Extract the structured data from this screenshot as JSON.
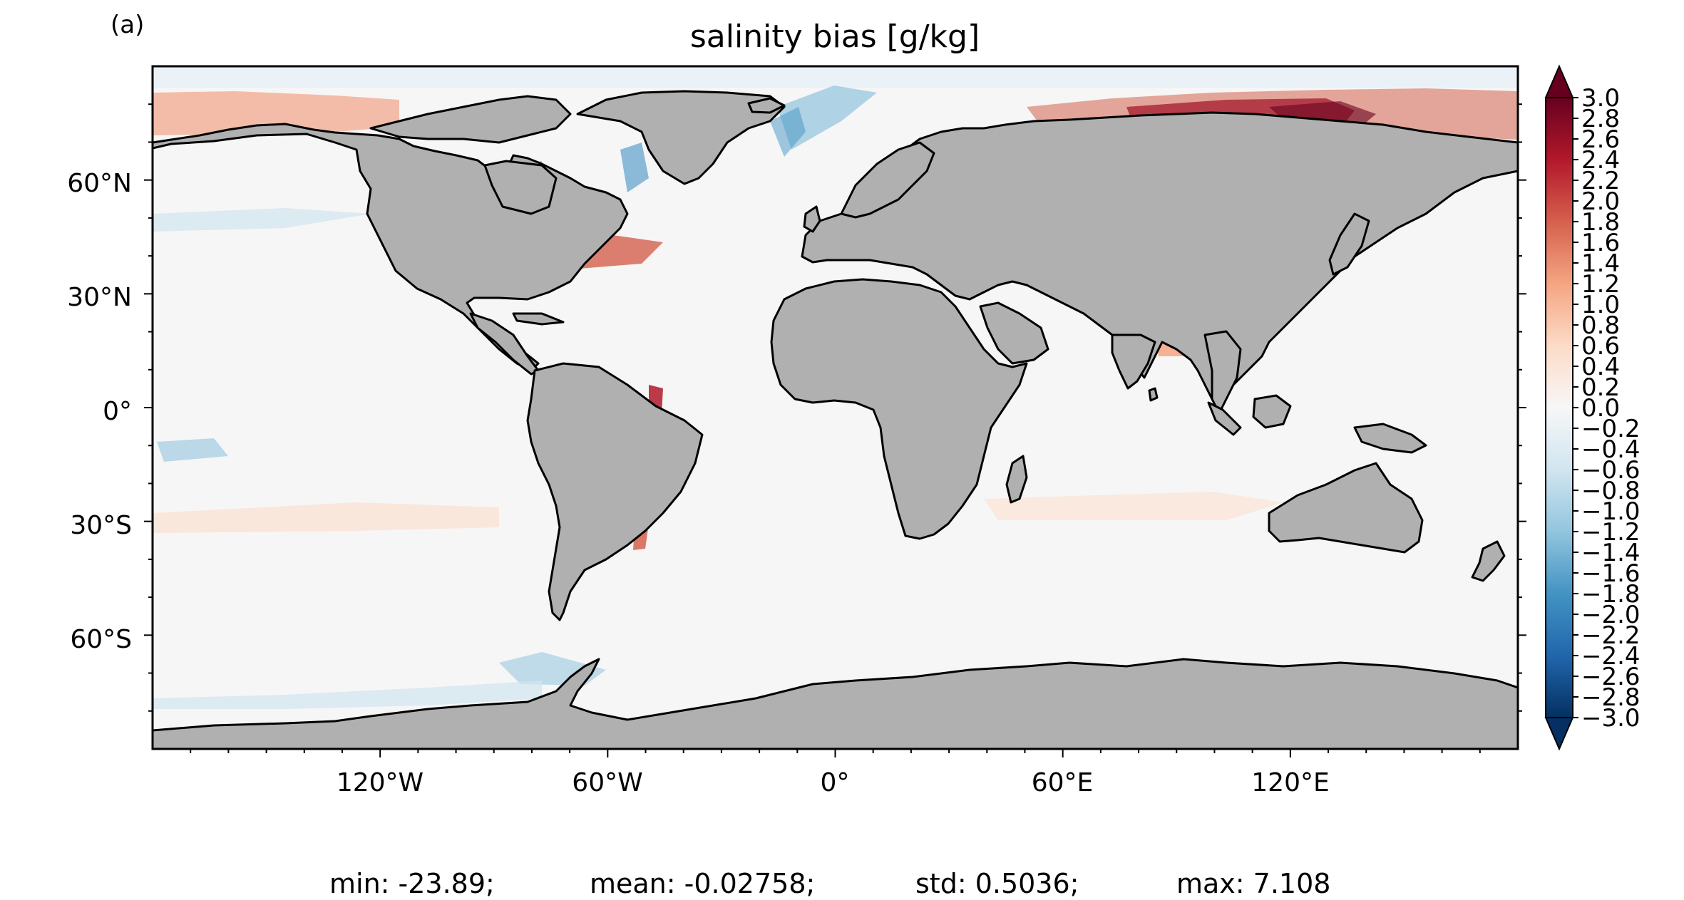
{
  "panel_label": "(a)",
  "title": "salinity bias [g/kg]",
  "lat_labels": [
    "60°N",
    "30°N",
    "0°",
    "30°S",
    "60°S"
  ],
  "lon_labels": [
    "120°W",
    "60°W",
    "0°",
    "60°E",
    "120°E"
  ],
  "colorbar": {
    "ticks": [
      "3.0",
      "2.8",
      "2.6",
      "2.4",
      "2.2",
      "2.0",
      "1.8",
      "1.6",
      "1.4",
      "1.2",
      "1.0",
      "0.8",
      "0.6",
      "0.4",
      "0.2",
      "0.0",
      "−0.2",
      "−0.4",
      "−0.6",
      "−0.8",
      "−1.0",
      "−1.2",
      "−1.4",
      "−1.6",
      "−1.8",
      "−2.0",
      "−2.2",
      "−2.4",
      "−2.6",
      "−2.8",
      "−3.0"
    ],
    "colors": [
      "#67001f",
      "#b2182b",
      "#d6604d",
      "#f4a582",
      "#fddbc7",
      "#f7f7f7",
      "#d1e5f0",
      "#92c5de",
      "#4393c3",
      "#2166ac",
      "#053061"
    ],
    "extend": "both"
  },
  "stats": {
    "min": "min: -23.89;",
    "mean": "mean: -0.02758;",
    "std": "std: 0.5036;",
    "max": "max: 7.108"
  },
  "colors": {
    "land": "#b0b0b0",
    "coast": "#000000",
    "ocean": "#f6f6f6"
  }
}
